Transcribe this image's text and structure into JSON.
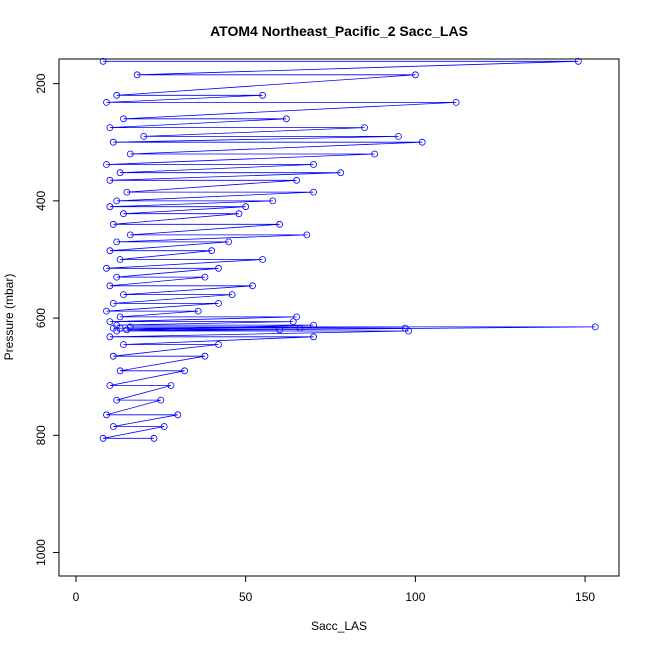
{
  "chart_data": {
    "type": "line",
    "title": "ATOM4 Northeast_Pacific_2 Sacc_LAS",
    "xlabel": "Sacc_LAS",
    "ylabel": "Pressure (mbar)",
    "xlim": [
      -5,
      160
    ],
    "ylim": [
      1040,
      158
    ],
    "y_reversed": true,
    "x_ticks": [
      "0",
      "50",
      "100",
      "150"
    ],
    "y_ticks": [
      "200",
      "400",
      "600",
      "800",
      "1000"
    ],
    "grid": false,
    "series": [
      {
        "color": "#0000ff",
        "marker": "open-circle",
        "x": [
          8,
          148,
          18,
          100,
          12,
          55,
          9,
          112,
          14,
          62,
          10,
          85,
          20,
          95,
          11,
          102,
          16,
          88,
          9,
          70,
          13,
          78,
          10,
          65,
          15,
          70,
          12,
          58,
          10,
          50,
          14,
          48,
          11,
          60,
          16,
          68,
          12,
          45,
          10,
          40,
          13,
          55,
          9,
          42,
          12,
          38,
          10,
          52,
          14,
          46,
          11,
          42,
          9,
          36,
          13,
          65,
          10,
          64,
          12,
          70,
          15,
          60,
          11,
          66,
          13,
          97,
          16,
          153,
          12,
          98,
          10,
          70,
          14,
          42,
          11,
          38,
          13,
          32,
          10,
          28,
          12,
          25,
          9,
          30,
          11,
          26,
          8,
          23
        ],
        "y": [
          162,
          162,
          185,
          185,
          220,
          220,
          232,
          232,
          260,
          260,
          275,
          275,
          290,
          290,
          300,
          300,
          320,
          320,
          338,
          338,
          352,
          352,
          365,
          365,
          385,
          385,
          400,
          400,
          410,
          410,
          422,
          422,
          440,
          440,
          458,
          458,
          470,
          470,
          485,
          485,
          500,
          500,
          515,
          515,
          530,
          530,
          545,
          545,
          560,
          560,
          575,
          575,
          588,
          588,
          598,
          598,
          606,
          606,
          612,
          612,
          620,
          620,
          617,
          617,
          617,
          617,
          615,
          615,
          622,
          622,
          632,
          632,
          645,
          645,
          665,
          665,
          690,
          690,
          715,
          715,
          740,
          740,
          765,
          765,
          785,
          785,
          805,
          805
        ]
      }
    ]
  }
}
